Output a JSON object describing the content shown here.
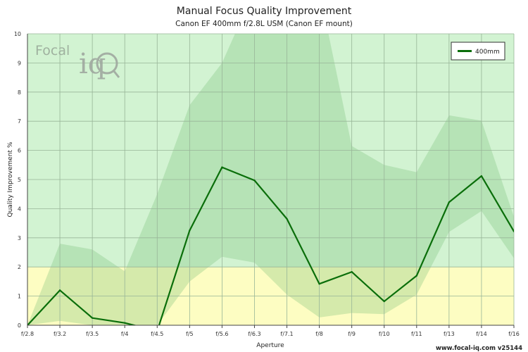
{
  "chart_data": {
    "type": "line",
    "title": "Manual Focus Quality Improvement",
    "subtitle": "Canon EF 400mm f/2.8L USM (Canon EF mount)",
    "xlabel": "Aperture",
    "ylabel": "Quality Improvement %",
    "categories": [
      "f/2.8",
      "f/3.2",
      "f/3.5",
      "f/4",
      "f/4.5",
      "f/5",
      "f/5.6",
      "f/6.3",
      "f/7.1",
      "f/8",
      "f/9",
      "f/10",
      "f/11",
      "f/13",
      "f/14",
      "f/16"
    ],
    "ylim": [
      0,
      10
    ],
    "yticks": [
      0,
      1,
      2,
      3,
      4,
      5,
      6,
      7,
      8,
      9,
      10
    ],
    "series": [
      {
        "name": "400mm",
        "color": "#0a6e0a",
        "values": [
          0.0,
          1.2,
          0.25,
          0.08,
          -0.2,
          3.25,
          5.42,
          4.97,
          3.65,
          1.42,
          1.83,
          0.82,
          1.7,
          4.22,
          5.12,
          3.22
        ]
      }
    ],
    "band": {
      "upper": [
        0.0,
        2.8,
        2.6,
        1.85,
        4.5,
        7.55,
        9.0,
        11.5,
        11.5,
        11.5,
        6.15,
        5.5,
        5.25,
        7.2,
        7.02,
        3.72
      ],
      "lower": [
        0.0,
        0.15,
        0.0,
        0.0,
        0.0,
        1.5,
        2.35,
        2.15,
        1.05,
        0.27,
        0.42,
        0.38,
        1.05,
        3.2,
        3.92,
        2.3
      ]
    },
    "zones": {
      "low_threshold": 2,
      "low_color": "#fdfdc2",
      "high_color": "#d2f3d2"
    },
    "grid": true,
    "legend_position": "top-right"
  },
  "branding": {
    "logo_focal": "Focal",
    "logo_iq": "iq",
    "credit": "www.focal-iq.com  v25144"
  }
}
